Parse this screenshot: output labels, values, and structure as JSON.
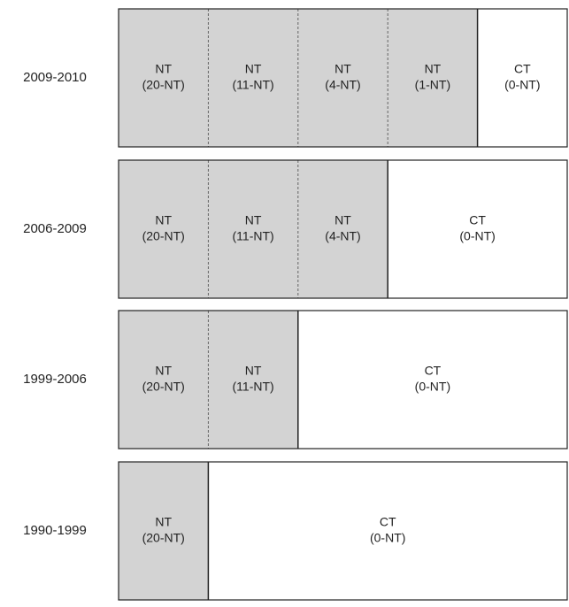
{
  "rows": [
    {
      "period": "2009-2010",
      "cells": [
        [
          "NT",
          "(20-NT)"
        ],
        [
          "NT",
          "(11-NT)"
        ],
        [
          "NT",
          "(4-NT)"
        ],
        [
          "NT",
          "(1-NT)"
        ],
        [
          "CT",
          "(0-NT)"
        ]
      ]
    },
    {
      "period": "2006-2009",
      "cells": [
        [
          "NT",
          "(20-NT)"
        ],
        [
          "NT",
          "(11-NT)"
        ],
        [
          "NT",
          "(4-NT)"
        ],
        [
          "CT",
          "(0-NT)"
        ]
      ]
    },
    {
      "period": "1999-2006",
      "cells": [
        [
          "NT",
          "(20-NT)"
        ],
        [
          "NT",
          "(11-NT)"
        ],
        [
          "CT",
          "(0-NT)"
        ]
      ]
    },
    {
      "period": "1990-1999",
      "cells": [
        [
          "NT",
          "(20-NT)"
        ],
        [
          "CT",
          "(0-NT)"
        ]
      ]
    }
  ]
}
